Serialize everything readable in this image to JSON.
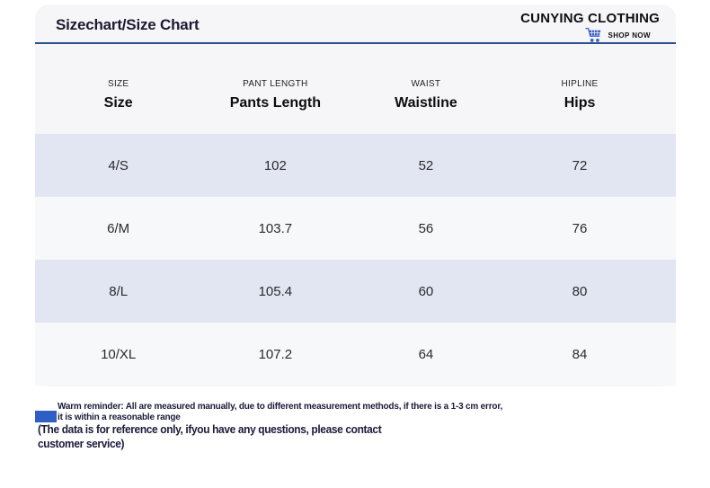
{
  "header": {
    "title": "Sizechart/Size Chart",
    "brand": "CUNYING CLOTHING",
    "shop_now": "SHOP NOW",
    "underline_color": "#2a5290",
    "cart_color": "#3a5fc6"
  },
  "table": {
    "columns": [
      {
        "sub": "SIZE",
        "label": "Size"
      },
      {
        "sub": "PANT LENGTH",
        "label": "Pants Length"
      },
      {
        "sub": "WAIST",
        "label": "Waistline"
      },
      {
        "sub": "HIPLINE",
        "label": "Hips"
      }
    ],
    "rows": [
      [
        "4/S",
        "102",
        "52",
        "72"
      ],
      [
        "6/M",
        "103.7",
        "56",
        "76"
      ],
      [
        "8/L",
        "105.4",
        "60",
        "80"
      ],
      [
        "10/XL",
        "107.2",
        "64",
        "84"
      ]
    ],
    "row_color_alt": "#e2e6f2",
    "row_color_base": "#f7f8fa"
  },
  "footer": {
    "reminder_line1": "Warm reminder: All are measured manually, due to different measurement methods, if there is a 1-3 cm error,",
    "reminder_line2": "it is within a reasonable range",
    "note_line1": "(The data is for reference only, ifyou have any questions, please contact",
    "note_line2": "customer service)",
    "marker_color": "#2f5ec4"
  }
}
